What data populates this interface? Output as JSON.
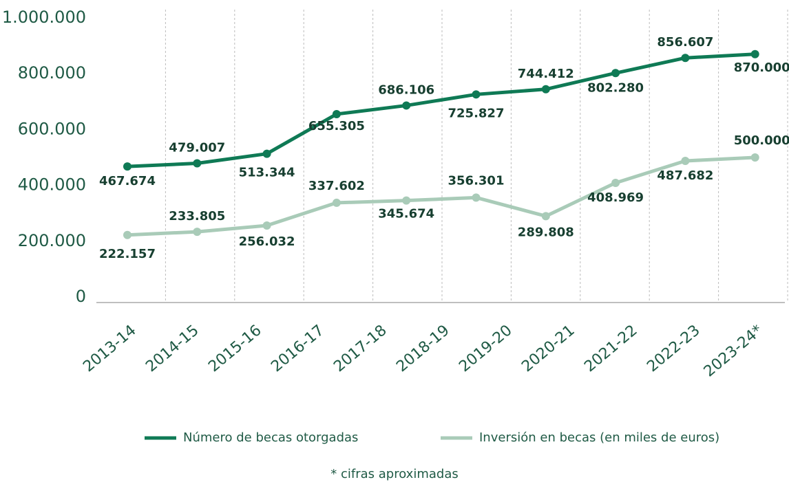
{
  "chart_data": {
    "type": "line",
    "categories": [
      "2013-14",
      "2014-15",
      "2015-16",
      "2016-17",
      "2017-18",
      "2018-19",
      "2019-20",
      "2020-21",
      "2021-22",
      "2022-23",
      "2023-24*"
    ],
    "series": [
      {
        "name": "Número de becas otorgadas",
        "color": "#0f7a55",
        "values": [
          null,
          467674,
          479007,
          513344,
          655305,
          686106,
          725827,
          744412,
          802280,
          856607,
          870000
        ],
        "value_labels": [
          null,
          "467.674",
          "479.007",
          "513.344",
          "655.305",
          "686.106",
          "725.827",
          "744.412",
          "802.280",
          "856.607",
          "870.000"
        ]
      },
      {
        "name": "Inversión en becas (en miles de euros)",
        "color": "#a9cbb8",
        "values": [
          null,
          222157,
          233805,
          256032,
          337602,
          345674,
          356301,
          289808,
          408969,
          487682,
          500000
        ],
        "value_labels": [
          null,
          "222.157",
          "233.805",
          "256.032",
          "337.602",
          "345.674",
          "356.301",
          "289.808",
          "408.969",
          "487.682",
          "500.000"
        ]
      }
    ],
    "ylim": [
      0,
      1000000
    ],
    "yticks": [
      0,
      {
        "value": 200000,
        "label": "200.000"
      },
      {
        "value": 400000,
        "label": "400.000"
      },
      {
        "value": 600000,
        "label": "600.000"
      },
      {
        "value": 800000,
        "label": "800.000"
      },
      {
        "value": 1000000,
        "label": "1.000.000"
      }
    ],
    "note": "* cifras aproximadas"
  }
}
